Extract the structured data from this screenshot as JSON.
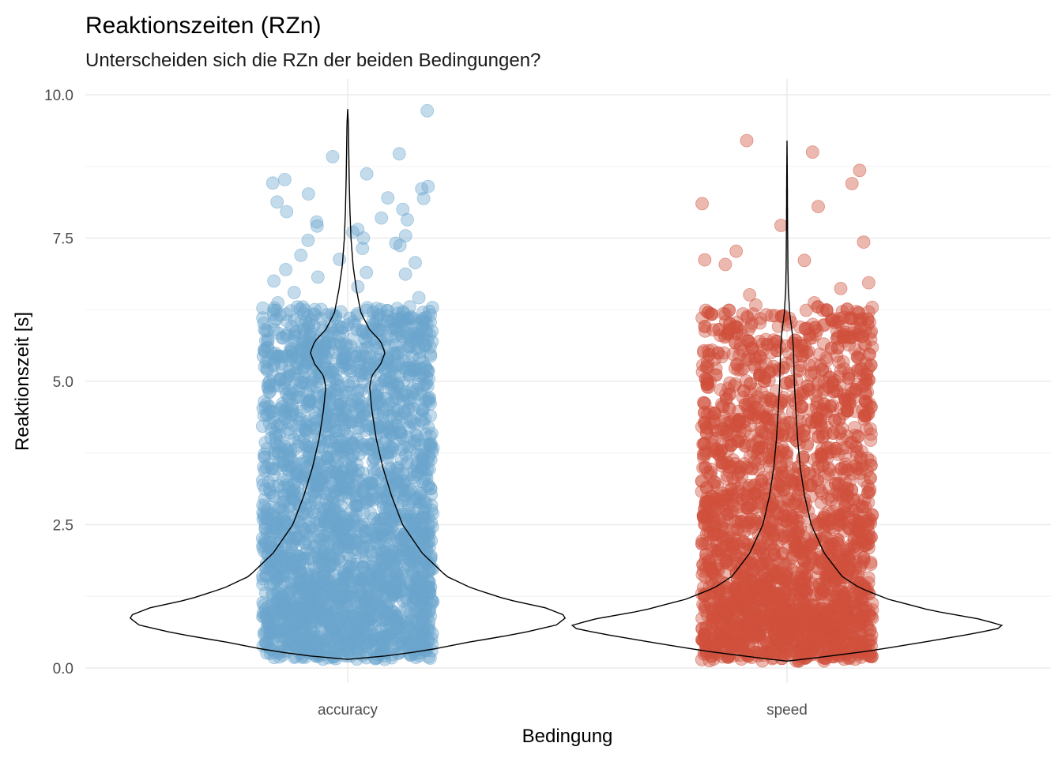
{
  "chart_data": {
    "type": "violin-jitter",
    "title": "Reaktionszeiten (RZn)",
    "subtitle": "Unterscheiden sich die RZn der beiden Bedingungen?",
    "xlabel": "Bedingung",
    "ylabel": "Reaktionszeit [s]",
    "ylim": [
      0,
      10
    ],
    "yticks": [
      0,
      2.5,
      5,
      7.5,
      10
    ],
    "ytick_labels": [
      "0.0",
      "2.5",
      "5.0",
      "7.5",
      "10.0"
    ],
    "grid": true,
    "categories": [
      "accuracy",
      "speed"
    ],
    "series": [
      {
        "category": "accuracy",
        "color": "#6BA6CD",
        "point_alpha": 0.4,
        "min": 0.15,
        "max": 9.75,
        "density_profile": [
          [
            0.15,
            0.0
          ],
          [
            0.2,
            0.15
          ],
          [
            0.3,
            0.35
          ],
          [
            0.45,
            0.55
          ],
          [
            0.6,
            0.78
          ],
          [
            0.75,
            0.95
          ],
          [
            0.9,
            1.0
          ],
          [
            1.05,
            0.9
          ],
          [
            1.2,
            0.72
          ],
          [
            1.4,
            0.56
          ],
          [
            1.6,
            0.45
          ],
          [
            2.0,
            0.34
          ],
          [
            2.5,
            0.25
          ],
          [
            3.0,
            0.2
          ],
          [
            3.5,
            0.16
          ],
          [
            4.0,
            0.13
          ],
          [
            4.5,
            0.11
          ],
          [
            4.9,
            0.1
          ],
          [
            5.1,
            0.11
          ],
          [
            5.3,
            0.15
          ],
          [
            5.5,
            0.17
          ],
          [
            5.7,
            0.15
          ],
          [
            5.9,
            0.1
          ],
          [
            6.2,
            0.06
          ],
          [
            6.6,
            0.04
          ],
          [
            7.0,
            0.025
          ],
          [
            7.5,
            0.015
          ],
          [
            8.0,
            0.01
          ],
          [
            8.5,
            0.007
          ],
          [
            9.0,
            0.005
          ],
          [
            9.5,
            0.003
          ],
          [
            9.75,
            0.0
          ]
        ],
        "outliers": [
          9.72,
          8.97,
          8.92,
          8.62,
          8.52,
          8.46,
          8.4,
          8.36,
          8.27,
          8.2,
          8.19,
          8.13,
          8.0,
          7.96,
          7.85,
          7.82,
          7.78,
          7.71,
          7.65,
          7.6,
          7.54,
          7.5,
          7.46,
          7.41,
          7.37,
          7.32,
          7.2,
          7.13,
          7.07,
          6.95,
          6.9,
          6.87,
          6.82,
          6.75,
          6.65,
          6.55,
          6.46,
          6.37
        ]
      },
      {
        "category": "speed",
        "color": "#D0503C",
        "point_alpha": 0.4,
        "min": 0.12,
        "max": 9.2,
        "density_profile": [
          [
            0.12,
            0.0
          ],
          [
            0.2,
            0.18
          ],
          [
            0.3,
            0.38
          ],
          [
            0.45,
            0.62
          ],
          [
            0.6,
            0.85
          ],
          [
            0.72,
            1.0
          ],
          [
            0.85,
            0.88
          ],
          [
            1.0,
            0.66
          ],
          [
            1.2,
            0.46
          ],
          [
            1.4,
            0.33
          ],
          [
            1.6,
            0.25
          ],
          [
            2.0,
            0.17
          ],
          [
            2.5,
            0.11
          ],
          [
            3.0,
            0.08
          ],
          [
            3.5,
            0.06
          ],
          [
            4.0,
            0.048
          ],
          [
            4.5,
            0.04
          ],
          [
            5.0,
            0.033
          ],
          [
            5.5,
            0.03
          ],
          [
            5.8,
            0.025
          ],
          [
            6.2,
            0.012
          ],
          [
            6.6,
            0.006
          ],
          [
            7.0,
            0.004
          ],
          [
            7.5,
            0.003
          ],
          [
            8.0,
            0.002
          ],
          [
            8.5,
            0.0015
          ],
          [
            9.2,
            0.0
          ]
        ],
        "outliers": [
          9.2,
          9.0,
          8.68,
          8.45,
          8.1,
          8.05,
          7.72,
          7.43,
          7.27,
          7.12,
          7.11,
          7.04,
          6.72,
          6.62,
          6.51,
          6.37,
          6.33,
          6.29,
          6.24,
          6.18,
          6.12,
          6.08,
          6.04
        ]
      }
    ]
  }
}
